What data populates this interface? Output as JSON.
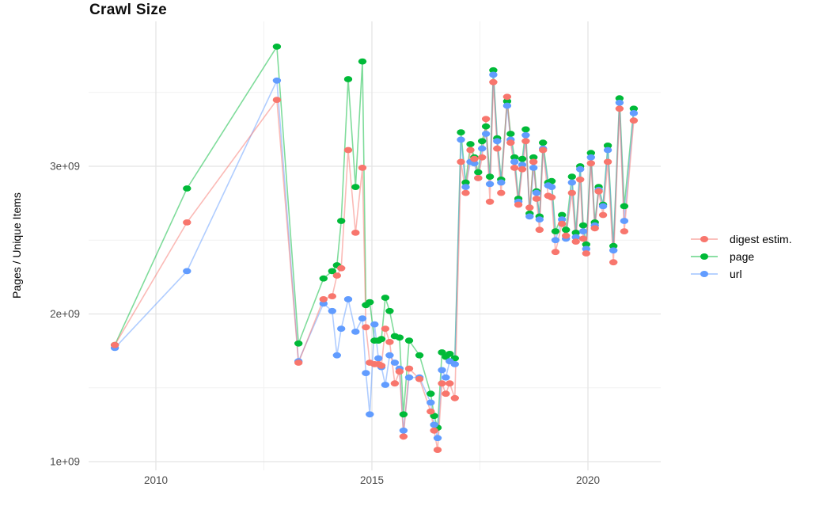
{
  "title": "Crawl Size",
  "y_axis_label": "Pages / Unique Items",
  "legend": {
    "position": "right",
    "items": [
      {
        "label": "digest estim.",
        "series": "digest",
        "color": "#F8766D"
      },
      {
        "label": "page",
        "series": "page",
        "color": "#00BA38"
      },
      {
        "label": "url",
        "series": "url",
        "color": "#619CFF"
      }
    ]
  },
  "axes": {
    "x_tick_labels": [
      "2010",
      "2015",
      "2020"
    ],
    "y_tick_labels": [
      "1e+09",
      "2e+09",
      "3e+09"
    ]
  },
  "colors": {
    "digest": "#F8766D",
    "page": "#00BA38",
    "url": "#619CFF",
    "grid_major": "#E4E4E4",
    "grid_minor": "#F1F1F1",
    "tick_label": "#4D4D4D",
    "background": "#FFFFFF"
  },
  "chart_data": {
    "type": "line",
    "title": "Crawl Size",
    "xlabel": "",
    "ylabel": "Pages / Unique Items",
    "x_unit": "calendar year (decimal = crawl date)",
    "values_unit": "1e9 (billions of pages / unique items)",
    "xlim": [
      2008.45,
      2021.65
    ],
    "ylim_e9": [
      0.95,
      3.95
    ],
    "x_ticks_major": [
      2010,
      2015,
      2020
    ],
    "x_ticks_minor": [
      2012.5,
      2017.5
    ],
    "y_ticks_major_e9": [
      1,
      2,
      3
    ],
    "y_ticks_minor_e9": [
      1.5,
      2.5,
      3.5
    ],
    "grid": "major and minor gridlines, light gray on white, no axis lines",
    "legend_position": "right",
    "marker": "point",
    "x": [
      2009.05,
      2010.72,
      2012.8,
      2013.3,
      2013.88,
      2014.08,
      2014.19,
      2014.29,
      2014.45,
      2014.62,
      2014.78,
      2014.86,
      2014.95,
      2015.06,
      2015.15,
      2015.22,
      2015.31,
      2015.41,
      2015.53,
      2015.64,
      2015.73,
      2015.86,
      2016.1,
      2016.36,
      2016.44,
      2016.52,
      2016.62,
      2016.71,
      2016.8,
      2016.92,
      2017.06,
      2017.17,
      2017.28,
      2017.37,
      2017.46,
      2017.55,
      2017.64,
      2017.73,
      2017.81,
      2017.9,
      2017.99,
      2018.13,
      2018.21,
      2018.3,
      2018.39,
      2018.48,
      2018.56,
      2018.65,
      2018.74,
      2018.81,
      2018.88,
      2018.96,
      2019.08,
      2019.16,
      2019.25,
      2019.4,
      2019.49,
      2019.63,
      2019.72,
      2019.82,
      2019.89,
      2019.96,
      2020.07,
      2020.16,
      2020.25,
      2020.35,
      2020.46,
      2020.59,
      2020.73,
      2020.84,
      2021.06
    ],
    "series": [
      {
        "name": "page",
        "color": "#00BA38",
        "values_e9": [
          1.79,
          2.85,
          3.81,
          1.8,
          2.24,
          2.29,
          2.33,
          2.63,
          3.59,
          2.86,
          3.71,
          2.06,
          2.08,
          1.82,
          1.82,
          1.83,
          2.11,
          2.02,
          1.85,
          1.84,
          1.32,
          1.82,
          1.72,
          1.46,
          1.31,
          1.23,
          1.74,
          1.71,
          1.73,
          1.7,
          3.23,
          2.89,
          3.15,
          3.06,
          2.96,
          3.17,
          3.27,
          2.93,
          3.65,
          3.19,
          2.91,
          3.44,
          3.22,
          3.06,
          2.78,
          3.05,
          3.25,
          2.68,
          3.06,
          2.83,
          2.66,
          3.16,
          2.89,
          2.9,
          2.56,
          2.67,
          2.57,
          2.93,
          2.55,
          3.0,
          2.6,
          2.47,
          3.09,
          2.62,
          2.86,
          2.74,
          3.14,
          2.46,
          3.46,
          2.73,
          3.39
        ]
      },
      {
        "name": "url",
        "color": "#619CFF",
        "values_e9": [
          1.77,
          2.29,
          3.58,
          1.68,
          2.07,
          2.02,
          1.72,
          1.9,
          2.1,
          1.88,
          1.97,
          1.6,
          1.32,
          1.93,
          1.7,
          1.64,
          1.52,
          1.72,
          1.67,
          1.63,
          1.21,
          1.57,
          1.57,
          1.4,
          1.25,
          1.16,
          1.62,
          1.57,
          1.68,
          1.66,
          3.18,
          2.86,
          3.03,
          3.02,
          2.92,
          3.12,
          3.22,
          2.88,
          3.62,
          3.17,
          2.89,
          3.41,
          3.18,
          3.03,
          2.76,
          3.01,
          3.21,
          2.66,
          2.99,
          2.82,
          2.64,
          3.12,
          2.87,
          2.86,
          2.5,
          2.64,
          2.51,
          2.89,
          2.52,
          2.98,
          2.56,
          2.44,
          3.06,
          2.6,
          2.84,
          2.73,
          3.11,
          2.43,
          3.43,
          2.63,
          3.36
        ]
      },
      {
        "name": "digest estim.",
        "color": "#F8766D",
        "values_e9": [
          1.79,
          2.62,
          3.45,
          1.67,
          2.1,
          2.12,
          2.26,
          2.31,
          3.11,
          2.55,
          2.99,
          1.91,
          1.67,
          1.66,
          1.66,
          1.65,
          1.9,
          1.81,
          1.53,
          1.61,
          1.17,
          1.63,
          1.56,
          1.34,
          1.21,
          1.08,
          1.53,
          1.46,
          1.53,
          1.43,
          3.03,
          2.82,
          3.11,
          3.05,
          2.92,
          3.06,
          3.32,
          2.76,
          3.57,
          3.12,
          2.82,
          3.47,
          3.16,
          2.99,
          2.74,
          2.98,
          3.17,
          2.72,
          3.03,
          2.78,
          2.57,
          3.11,
          2.8,
          2.79,
          2.42,
          2.61,
          2.53,
          2.82,
          2.49,
          2.91,
          2.51,
          2.41,
          3.02,
          2.58,
          2.83,
          2.67,
          3.03,
          2.35,
          3.39,
          2.56,
          3.31
        ]
      }
    ]
  }
}
